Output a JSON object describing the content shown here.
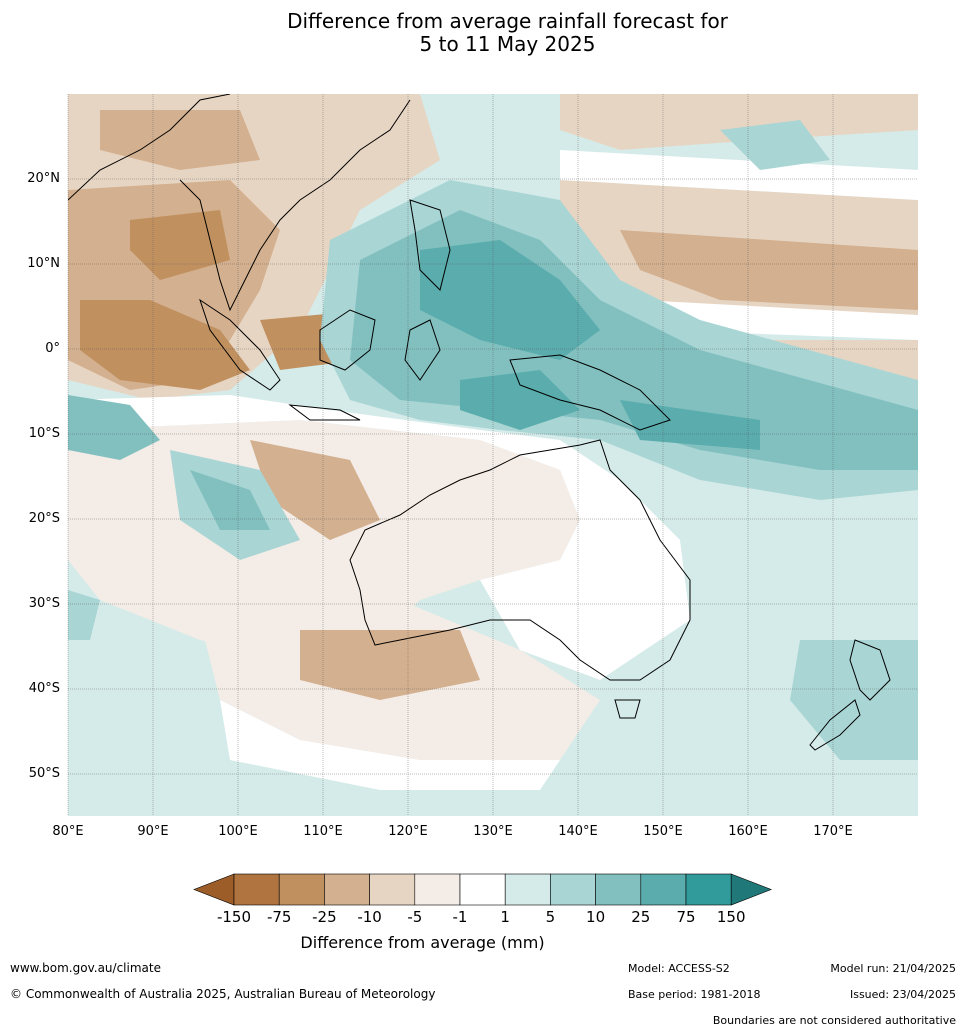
{
  "title_line1": "Difference from average rainfall forecast for",
  "title_line2": "5 to 11 May 2025",
  "map": {
    "lat_labels": [
      "20°N",
      "10°N",
      "0°",
      "10°S",
      "20°S",
      "30°S",
      "40°S",
      "50°S"
    ],
    "lon_labels": [
      "80°E",
      "90°E",
      "100°E",
      "110°E",
      "120°E",
      "130°E",
      "140°E",
      "150°E",
      "160°E",
      "170°E"
    ]
  },
  "legend": {
    "title": "Difference from average (mm)",
    "ticks": [
      "-150",
      "-75",
      "-25",
      "-10",
      "-5",
      "-1",
      "1",
      "5",
      "10",
      "25",
      "75",
      "150"
    ],
    "colors": [
      "#9c5d28",
      "#b07440",
      "#c1905f",
      "#d3b08f",
      "#e7d5c3",
      "#f4ece6",
      "#ffffff",
      "#d5ebe9",
      "#a9d5d4",
      "#82c0c0",
      "#5aacad",
      "#319a9a",
      "#207878"
    ]
  },
  "footer": {
    "website": "www.bom.gov.au/climate",
    "copyright": "© Commonwealth of Australia 2025, Australian Bureau of Meteorology",
    "model": "Model: ACCESS-S2",
    "base_period": "Base period: 1981-2018",
    "model_run": "Model run: 21/04/2025",
    "issued": "Issued: 23/04/2025",
    "disclaimer": "Boundaries are not considered authoritative"
  }
}
